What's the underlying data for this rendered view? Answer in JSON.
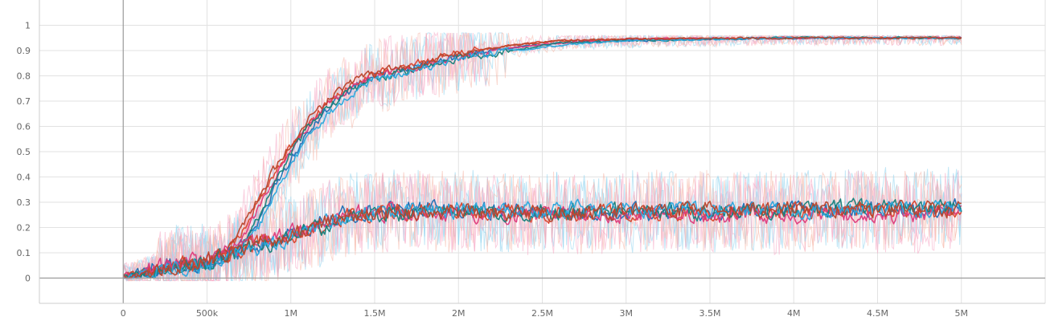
{
  "chart_data": {
    "type": "line",
    "title": "",
    "xlabel": "",
    "ylabel": "",
    "xlim": [
      -500000,
      5500000
    ],
    "ylim": [
      -0.1,
      1.1
    ],
    "x_tick_values": [
      0,
      500000,
      1000000,
      1500000,
      2000000,
      2500000,
      3000000,
      3500000,
      4000000,
      4500000,
      5000000
    ],
    "x_tick_labels": [
      "0",
      "500k",
      "1M",
      "1.5M",
      "2M",
      "2.5M",
      "3M",
      "3.5M",
      "4M",
      "4.5M",
      "5M"
    ],
    "y_tick_values": [
      0,
      0.1,
      0.2,
      0.3,
      0.4,
      0.5,
      0.6,
      0.7,
      0.8,
      0.9,
      1
    ],
    "y_tick_labels": [
      "0",
      "0.1",
      "0.2",
      "0.3",
      "0.4",
      "0.5",
      "0.6",
      "0.7",
      "0.8",
      "0.9",
      "1"
    ],
    "grid": true,
    "legend": "none",
    "raw_colors": [
      "#8fd3ee",
      "#f6b8aa",
      "#f5a8c4"
    ],
    "series": [
      {
        "color": "#1f6fb4",
        "group": "high",
        "x": [
          0,
          300000,
          500000,
          600000,
          700000,
          800000,
          900000,
          1000000,
          1100000,
          1200000,
          1300000,
          1400000,
          1500000,
          1700000,
          2000000,
          2300000,
          2600000,
          3000000,
          4000000,
          5000000
        ],
        "y": [
          0,
          0.04,
          0.05,
          0.08,
          0.14,
          0.22,
          0.36,
          0.48,
          0.58,
          0.66,
          0.72,
          0.77,
          0.8,
          0.83,
          0.88,
          0.91,
          0.93,
          0.94,
          0.95,
          0.95
        ]
      },
      {
        "color": "#d9462e",
        "group": "high",
        "x": [
          0,
          300000,
          500000,
          600000,
          700000,
          800000,
          900000,
          1000000,
          1100000,
          1200000,
          1300000,
          1400000,
          1500000,
          1700000,
          2000000,
          2300000,
          2600000,
          3000000,
          4000000,
          5000000
        ],
        "y": [
          0,
          0.05,
          0.06,
          0.1,
          0.18,
          0.3,
          0.42,
          0.53,
          0.62,
          0.69,
          0.74,
          0.78,
          0.81,
          0.84,
          0.89,
          0.92,
          0.94,
          0.945,
          0.95,
          0.95
        ]
      },
      {
        "color": "#dd3b7c",
        "group": "high",
        "x": [
          0,
          300000,
          500000,
          600000,
          700000,
          800000,
          900000,
          1000000,
          1100000,
          1200000,
          1300000,
          1400000,
          1500000,
          1700000,
          2000000,
          2300000,
          2600000,
          3000000,
          4000000,
          5000000
        ],
        "y": [
          0,
          0.06,
          0.05,
          0.09,
          0.16,
          0.27,
          0.4,
          0.51,
          0.6,
          0.68,
          0.73,
          0.77,
          0.8,
          0.83,
          0.88,
          0.91,
          0.93,
          0.945,
          0.95,
          0.95
        ]
      },
      {
        "color": "#17817a",
        "group": "high",
        "x": [
          0,
          300000,
          500000,
          600000,
          700000,
          800000,
          900000,
          1000000,
          1100000,
          1200000,
          1300000,
          1400000,
          1500000,
          1700000,
          2000000,
          2300000,
          2600000,
          3000000,
          4000000,
          5000000
        ],
        "y": [
          0,
          0.04,
          0.05,
          0.08,
          0.13,
          0.24,
          0.38,
          0.5,
          0.6,
          0.67,
          0.72,
          0.76,
          0.79,
          0.82,
          0.87,
          0.9,
          0.93,
          0.94,
          0.95,
          0.95
        ]
      },
      {
        "color": "#2ba6dc",
        "group": "high",
        "x": [
          0,
          300000,
          500000,
          600000,
          700000,
          800000,
          900000,
          1000000,
          1100000,
          1200000,
          1300000,
          1400000,
          1500000,
          1700000,
          2000000,
          2300000,
          2600000,
          3000000,
          4000000,
          5000000
        ],
        "y": [
          0,
          0.03,
          0.04,
          0.07,
          0.12,
          0.2,
          0.34,
          0.46,
          0.56,
          0.64,
          0.7,
          0.75,
          0.78,
          0.82,
          0.87,
          0.9,
          0.92,
          0.94,
          0.95,
          0.95
        ]
      },
      {
        "color": "#b8442c",
        "group": "high",
        "x": [
          0,
          300000,
          500000,
          600000,
          700000,
          800000,
          900000,
          1000000,
          1100000,
          1200000,
          1300000,
          1400000,
          1500000,
          1700000,
          2000000,
          2300000,
          2600000,
          3000000,
          4000000,
          5000000
        ],
        "y": [
          0,
          0.05,
          0.06,
          0.1,
          0.2,
          0.32,
          0.44,
          0.54,
          0.63,
          0.7,
          0.75,
          0.79,
          0.81,
          0.84,
          0.89,
          0.92,
          0.94,
          0.945,
          0.95,
          0.95
        ]
      },
      {
        "color": "#1f6fb4",
        "group": "low",
        "x": [
          0,
          300000,
          500000,
          700000,
          900000,
          1100000,
          1300000,
          1500000,
          2000000,
          2500000,
          3000000,
          3500000,
          4000000,
          4500000,
          5000000
        ],
        "y": [
          0,
          0.06,
          0.06,
          0.1,
          0.14,
          0.2,
          0.25,
          0.27,
          0.27,
          0.26,
          0.26,
          0.26,
          0.27,
          0.27,
          0.28
        ]
      },
      {
        "color": "#d9462e",
        "group": "low",
        "x": [
          0,
          300000,
          500000,
          700000,
          900000,
          1100000,
          1300000,
          1500000,
          2000000,
          2500000,
          3000000,
          3500000,
          4000000,
          4500000,
          5000000
        ],
        "y": [
          0,
          0.05,
          0.06,
          0.12,
          0.15,
          0.19,
          0.24,
          0.26,
          0.26,
          0.25,
          0.26,
          0.26,
          0.26,
          0.27,
          0.27
        ]
      },
      {
        "color": "#dd3b7c",
        "group": "low",
        "x": [
          0,
          300000,
          500000,
          700000,
          900000,
          1100000,
          1300000,
          1500000,
          2000000,
          2500000,
          3000000,
          3500000,
          4000000,
          4500000,
          5000000
        ],
        "y": [
          0,
          0.06,
          0.07,
          0.13,
          0.16,
          0.2,
          0.25,
          0.26,
          0.25,
          0.25,
          0.25,
          0.25,
          0.25,
          0.25,
          0.26
        ]
      },
      {
        "color": "#17817a",
        "group": "low",
        "x": [
          0,
          300000,
          500000,
          700000,
          900000,
          1100000,
          1300000,
          1500000,
          2000000,
          2500000,
          3000000,
          3500000,
          4000000,
          4500000,
          5000000
        ],
        "y": [
          0,
          0.05,
          0.06,
          0.11,
          0.14,
          0.18,
          0.23,
          0.25,
          0.26,
          0.26,
          0.27,
          0.26,
          0.27,
          0.28,
          0.28
        ]
      },
      {
        "color": "#2ba6dc",
        "group": "low",
        "x": [
          0,
          300000,
          500000,
          700000,
          900000,
          1100000,
          1300000,
          1500000,
          2000000,
          2500000,
          3000000,
          3500000,
          4000000,
          4500000,
          5000000
        ],
        "y": [
          0,
          0.04,
          0.05,
          0.09,
          0.13,
          0.19,
          0.24,
          0.26,
          0.27,
          0.27,
          0.27,
          0.27,
          0.27,
          0.27,
          0.28
        ]
      },
      {
        "color": "#b8442c",
        "group": "low",
        "x": [
          0,
          300000,
          500000,
          700000,
          900000,
          1100000,
          1300000,
          1500000,
          2000000,
          2500000,
          3000000,
          3500000,
          4000000,
          4500000,
          5000000
        ],
        "y": [
          0,
          0.05,
          0.07,
          0.12,
          0.15,
          0.2,
          0.25,
          0.26,
          0.26,
          0.26,
          0.26,
          0.27,
          0.27,
          0.27,
          0.27
        ]
      }
    ]
  }
}
